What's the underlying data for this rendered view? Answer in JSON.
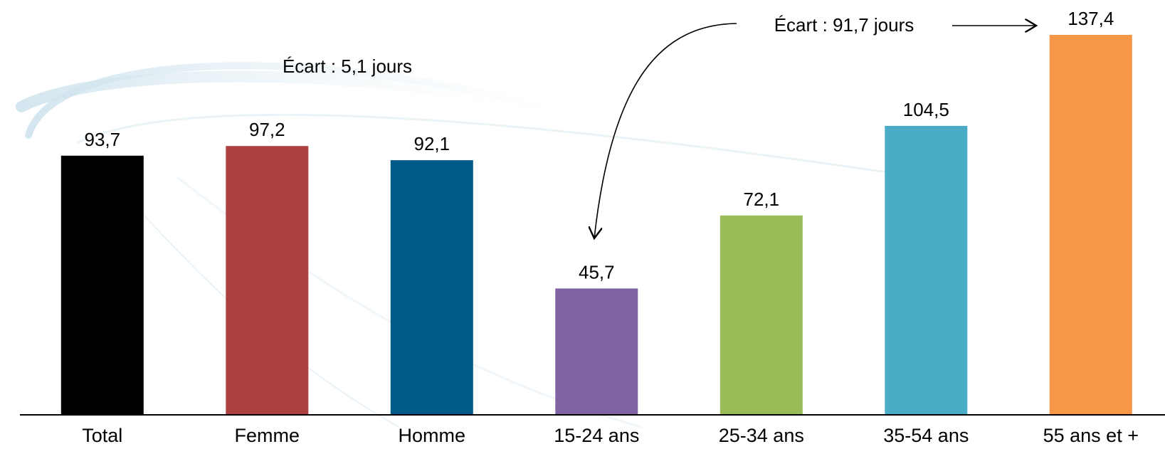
{
  "chart_data": {
    "type": "bar",
    "title": "",
    "xlabel": "",
    "ylabel": "",
    "ylim": [
      0,
      145
    ],
    "grid": false,
    "categories": [
      "Total",
      "Femme",
      "Homme",
      "15-24 ans",
      "25-34 ans",
      "35-54 ans",
      "55 ans et +"
    ],
    "values": [
      93.7,
      97.2,
      92.1,
      45.7,
      72.1,
      104.5,
      137.4
    ],
    "value_labels": [
      "93,7",
      "97,2",
      "92,1",
      "45,7",
      "72,1",
      "104,5",
      "137,4"
    ],
    "colors": [
      "#000000",
      "#AE4040",
      "#005A87",
      "#8064A2",
      "#9BBB59",
      "#4BACC6",
      "#F79646"
    ],
    "annotations": [
      {
        "id": "gender-gap",
        "text": "Écart : 5,1 jours"
      },
      {
        "id": "age-gap",
        "text": "Écart : 91,7 jours"
      }
    ]
  }
}
